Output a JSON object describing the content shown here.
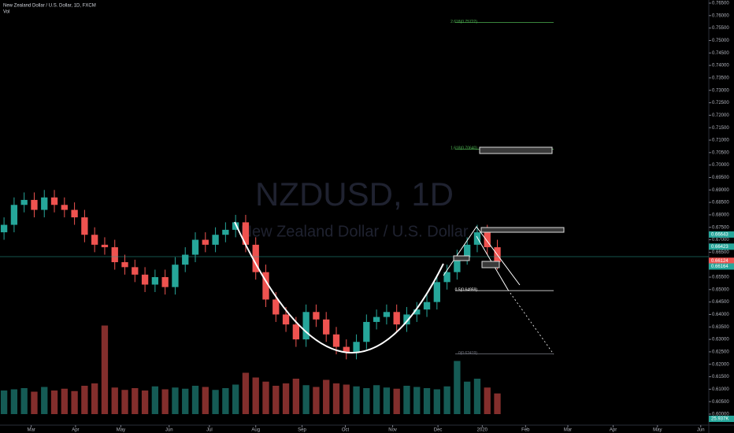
{
  "chart_data": {
    "type": "candlestick",
    "title": "New Zealand Dollar / U.S. Dollar, 1D, FXCM",
    "volume_title": "Vol",
    "watermark": "NZDUSD, 1D",
    "watermark_subtitle": "New Zealand Dollar / U.S. Dollar",
    "up_color": "#26a69a",
    "down_color": "#ef5350",
    "open": [
      0.673,
      0.676,
      0.684,
      0.686,
      0.682,
      0.687,
      0.684,
      0.682,
      0.679,
      0.672,
      0.668,
      0.667,
      0.661,
      0.659,
      0.656,
      0.652,
      0.655,
      0.651,
      0.66,
      0.664,
      0.67,
      0.668,
      0.672,
      0.674,
      0.677,
      0.668,
      0.657,
      0.646,
      0.64,
      0.636,
      0.63,
      0.641,
      0.638,
      0.632,
      0.627,
      0.625,
      0.629,
      0.637,
      0.639,
      0.641,
      0.636,
      0.64,
      0.642,
      0.645,
      0.653,
      0.657,
      0.663,
      0.668,
      0.673,
      0.667
    ],
    "high": [
      0.679,
      0.687,
      0.689,
      0.689,
      0.69,
      0.69,
      0.687,
      0.685,
      0.682,
      0.675,
      0.671,
      0.67,
      0.664,
      0.662,
      0.659,
      0.658,
      0.658,
      0.663,
      0.667,
      0.673,
      0.673,
      0.675,
      0.677,
      0.68,
      0.68,
      0.671,
      0.66,
      0.649,
      0.643,
      0.639,
      0.644,
      0.644,
      0.641,
      0.635,
      0.63,
      0.632,
      0.64,
      0.642,
      0.644,
      0.644,
      0.643,
      0.645,
      0.648,
      0.656,
      0.66,
      0.666,
      0.671,
      0.676,
      0.676,
      0.67
    ],
    "low": [
      0.67,
      0.673,
      0.681,
      0.679,
      0.679,
      0.681,
      0.679,
      0.676,
      0.669,
      0.665,
      0.664,
      0.658,
      0.656,
      0.653,
      0.649,
      0.649,
      0.648,
      0.648,
      0.657,
      0.661,
      0.665,
      0.665,
      0.669,
      0.671,
      0.665,
      0.654,
      0.643,
      0.637,
      0.633,
      0.627,
      0.627,
      0.635,
      0.629,
      0.624,
      0.622,
      0.622,
      0.626,
      0.634,
      0.636,
      0.633,
      0.633,
      0.637,
      0.639,
      0.642,
      0.65,
      0.654,
      0.66,
      0.665,
      0.664,
      0.658
    ],
    "close": [
      0.676,
      0.684,
      0.686,
      0.682,
      0.687,
      0.684,
      0.682,
      0.679,
      0.672,
      0.668,
      0.667,
      0.661,
      0.659,
      0.656,
      0.652,
      0.655,
      0.651,
      0.66,
      0.664,
      0.67,
      0.668,
      0.672,
      0.674,
      0.677,
      0.668,
      0.657,
      0.646,
      0.64,
      0.636,
      0.63,
      0.641,
      0.638,
      0.632,
      0.627,
      0.625,
      0.629,
      0.637,
      0.639,
      0.641,
      0.636,
      0.64,
      0.642,
      0.645,
      0.653,
      0.657,
      0.663,
      0.668,
      0.673,
      0.667,
      0.661
    ],
    "volume": [
      40,
      42,
      44,
      38,
      46,
      40,
      43,
      39,
      48,
      52,
      150,
      45,
      41,
      44,
      40,
      47,
      42,
      45,
      43,
      48,
      46,
      41,
      44,
      50,
      70,
      62,
      55,
      48,
      52,
      60,
      49,
      46,
      58,
      52,
      50,
      47,
      44,
      49,
      45,
      43,
      48,
      46,
      44,
      42,
      47,
      90,
      55,
      60,
      45,
      35
    ],
    "vlim": [
      0,
      160
    ],
    "volume_label": "25.937K",
    "xlim": [
      -0.4,
      70
    ],
    "xticks": [
      {
        "value": 2.7,
        "label": "Mar"
      },
      {
        "value": 7.1,
        "label": "Apr"
      },
      {
        "value": 11.6,
        "label": "May"
      },
      {
        "value": 16.4,
        "label": "Jun"
      },
      {
        "value": 20.4,
        "label": "Jul"
      },
      {
        "value": 25.0,
        "label": "Aug"
      },
      {
        "value": 29.6,
        "label": "Sep"
      },
      {
        "value": 33.9,
        "label": "Oct"
      },
      {
        "value": 38.6,
        "label": "Nov"
      },
      {
        "value": 43.1,
        "label": "Dec"
      },
      {
        "value": 47.5,
        "label": "2020"
      },
      {
        "value": 51.8,
        "label": "Feb"
      },
      {
        "value": 56.0,
        "label": "Mar"
      },
      {
        "value": 60.5,
        "label": "Apr"
      },
      {
        "value": 64.9,
        "label": "May"
      },
      {
        "value": 69.2,
        "label": "Jun"
      }
    ],
    "ylim": [
      0.6,
      0.765
    ],
    "yticks": [
      {
        "value": 0.765,
        "label": "0.76500"
      },
      {
        "value": 0.76,
        "label": "0.76000"
      },
      {
        "value": 0.755,
        "label": "0.75500"
      },
      {
        "value": 0.75,
        "label": "0.75000"
      },
      {
        "value": 0.745,
        "label": "0.74500"
      },
      {
        "value": 0.74,
        "label": "0.74000"
      },
      {
        "value": 0.735,
        "label": "0.73500"
      },
      {
        "value": 0.73,
        "label": "0.73000"
      },
      {
        "value": 0.725,
        "label": "0.72500"
      },
      {
        "value": 0.72,
        "label": "0.72000"
      },
      {
        "value": 0.715,
        "label": "0.71500"
      },
      {
        "value": 0.71,
        "label": "0.71000"
      },
      {
        "value": 0.705,
        "label": "0.70500"
      },
      {
        "value": 0.7,
        "label": "0.70000"
      },
      {
        "value": 0.695,
        "label": "0.69500"
      },
      {
        "value": 0.69,
        "label": "0.69000"
      },
      {
        "value": 0.685,
        "label": "0.68500"
      },
      {
        "value": 0.68,
        "label": "0.68000"
      },
      {
        "value": 0.675,
        "label": "0.67500"
      },
      {
        "value": 0.67,
        "label": "0.67000"
      },
      {
        "value": 0.665,
        "label": "0.66500"
      },
      {
        "value": 0.66,
        "label": "0.66000"
      },
      {
        "value": 0.655,
        "label": "0.65500"
      },
      {
        "value": 0.65,
        "label": "0.65000"
      },
      {
        "value": 0.645,
        "label": "0.64500"
      },
      {
        "value": 0.64,
        "label": "0.64000"
      },
      {
        "value": 0.635,
        "label": "0.63500"
      },
      {
        "value": 0.63,
        "label": "0.63000"
      },
      {
        "value": 0.625,
        "label": "0.62500"
      },
      {
        "value": 0.62,
        "label": "0.62000"
      },
      {
        "value": 0.615,
        "label": "0.61500"
      },
      {
        "value": 0.61,
        "label": "0.61000"
      },
      {
        "value": 0.605,
        "label": "0.60500"
      },
      {
        "value": 0.6,
        "label": "0.60000"
      }
    ],
    "price_tags": [
      {
        "value": 0.66643,
        "label": "0.66643",
        "color": "#26a69a"
      },
      {
        "value": 0.66423,
        "label": "0.66423",
        "color": "#26a69a"
      },
      {
        "value": 0.66124,
        "label": "0.66124",
        "color": "#ef5350"
      },
      {
        "value": 0.66164,
        "label": "0.66164",
        "color": "#26a69a"
      }
    ],
    "fib_levels": [
      {
        "value": 0.75722,
        "label": "2.618(0.75722)",
        "color": "#4caf50"
      },
      {
        "value": 0.7064,
        "label": "1.618(0.70640)",
        "color": "#4caf50"
      },
      {
        "value": 0.64959,
        "label": "0.5(0.64959)",
        "color": "#ffffff"
      },
      {
        "value": 0.62419,
        "label": "0(0.62419)",
        "color": "#787b86"
      }
    ]
  }
}
